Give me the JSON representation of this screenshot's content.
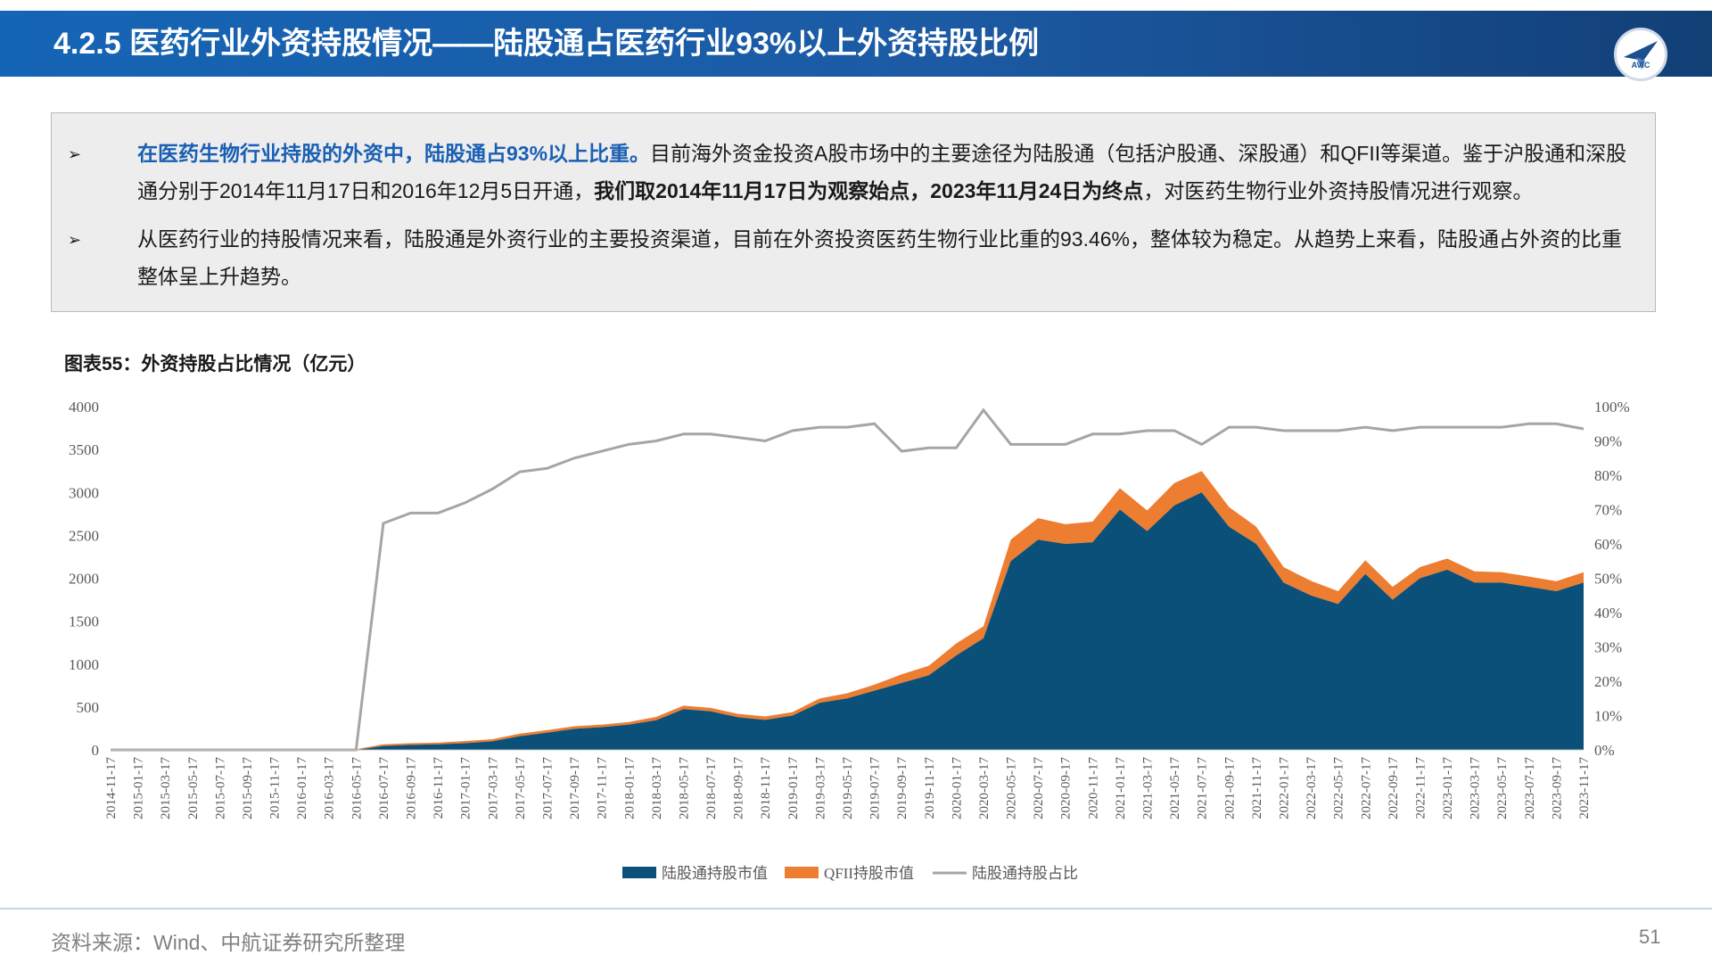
{
  "header": {
    "title": "4.2.5 医药行业外资持股情况——陆股通占医药行业93%以上外资持股比例",
    "logo_text": "AVIC"
  },
  "summary": {
    "bullet1_marker": "➢",
    "bullet1_lead": "在医药生物行业持股的外资中，陆股通占93%以上比重。",
    "bullet1_text1": "目前海外资金投资A股市场中的主要途径为陆股通（包括沪股通、深股通）和QFII等渠道。鉴于沪股通和深股通分别于2014年11月17日和2016年12月5日开通，",
    "bullet1_bold": "我们取2014年11月17日为观察始点，2023年11月24日为终点",
    "bullet1_text2": "，对医药生物行业外资持股情况进行观察。",
    "bullet2_marker": "➢",
    "bullet2_text": "从医药行业的持股情况来看，陆股通是外资行业的主要投资渠道，目前在外资投资医药生物行业比重的93.46%，整体较为稳定。从趋势上来看，陆股通占外资的比重整体呈上升趋势。"
  },
  "chart_title": "图表55：外资持股占比情况（亿元）",
  "footer": {
    "source": "资料来源：Wind、中航证券研究所整理",
    "page": "51"
  },
  "colors": {
    "lgt": "#0b5078",
    "qfii": "#ed7d31",
    "ratio": "#a5a5a5"
  },
  "chart_data": {
    "type": "area",
    "title": "图表55：外资持股占比情况（亿元）",
    "x_tick_labels": [
      "2014-11-17",
      "2015-01-17",
      "2015-03-17",
      "2015-05-17",
      "2015-07-17",
      "2015-09-17",
      "2015-11-17",
      "2016-01-17",
      "2016-03-17",
      "2016-05-17",
      "2016-07-17",
      "2016-09-17",
      "2016-11-17",
      "2017-01-17",
      "2017-03-17",
      "2017-05-17",
      "2017-07-17",
      "2017-09-17",
      "2017-11-17",
      "2018-01-17",
      "2018-03-17",
      "2018-05-17",
      "2018-07-17",
      "2018-09-17",
      "2018-11-17",
      "2019-01-17",
      "2019-03-17",
      "2019-05-17",
      "2019-07-17",
      "2019-09-17",
      "2019-11-17",
      "2020-01-17",
      "2020-03-17",
      "2020-05-17",
      "2020-07-17",
      "2020-09-17",
      "2020-11-17",
      "2021-01-17",
      "2021-03-17",
      "2021-05-17",
      "2021-07-17",
      "2021-09-17",
      "2021-11-17",
      "2022-01-17",
      "2022-03-17",
      "2022-05-17",
      "2022-07-17",
      "2022-09-17",
      "2022-11-17",
      "2023-01-17",
      "2023-03-17",
      "2023-05-17",
      "2023-07-17",
      "2023-09-17",
      "2023-11-17"
    ],
    "y_left": {
      "range": [
        0,
        4000
      ],
      "ticks": [
        "0",
        "500",
        "1000",
        "1500",
        "2000",
        "2500",
        "3000",
        "3500",
        "4000"
      ]
    },
    "y_right": {
      "range": [
        0,
        1
      ],
      "ticks": [
        "0%",
        "10%",
        "20%",
        "30%",
        "40%",
        "50%",
        "60%",
        "70%",
        "80%",
        "90%",
        "100%"
      ]
    },
    "legend_position": "bottom",
    "series": [
      {
        "name": "陆股通持股市值",
        "type": "area",
        "axis": "left",
        "values": [
          0,
          0,
          0,
          0,
          0,
          0,
          0,
          0,
          0,
          0,
          45,
          58,
          65,
          78,
          100,
          160,
          200,
          245,
          265,
          295,
          345,
          475,
          450,
          380,
          350,
          400,
          550,
          600,
          690,
          780,
          870,
          1100,
          1300,
          2200,
          2450,
          2400,
          2420,
          2800,
          2550,
          2850,
          3000,
          2600,
          2400,
          1950,
          1800,
          1700,
          2050,
          1750,
          2000,
          2100,
          1950,
          1950,
          1900,
          1850,
          1950
        ]
      },
      {
        "name": "QFII持股市值",
        "type": "area",
        "axis": "left",
        "values": [
          5,
          5,
          5,
          5,
          15,
          10,
          8,
          8,
          8,
          8,
          20,
          20,
          20,
          25,
          25,
          30,
          30,
          30,
          30,
          30,
          40,
          40,
          40,
          40,
          40,
          40,
          50,
          60,
          70,
          100,
          110,
          140,
          140,
          250,
          250,
          230,
          240,
          250,
          240,
          260,
          250,
          230,
          200,
          180,
          170,
          150,
          160,
          150,
          130,
          130,
          130,
          120,
          120,
          115,
          120
        ]
      },
      {
        "name": "陆股通持股占比",
        "type": "line",
        "axis": "right",
        "values": [
          0,
          0,
          0,
          0,
          0,
          0,
          0,
          0,
          0,
          0,
          0.66,
          0.69,
          0.69,
          0.72,
          0.76,
          0.81,
          0.82,
          0.85,
          0.87,
          0.89,
          0.9,
          0.92,
          0.92,
          0.91,
          0.9,
          0.93,
          0.94,
          0.94,
          0.95,
          0.87,
          0.88,
          0.88,
          0.99,
          0.89,
          0.89,
          0.89,
          0.92,
          0.92,
          0.93,
          0.93,
          0.89,
          0.94,
          0.94,
          0.93,
          0.93,
          0.93,
          0.94,
          0.93,
          0.94,
          0.94,
          0.94,
          0.94,
          0.95,
          0.95,
          0.935
        ]
      }
    ]
  }
}
